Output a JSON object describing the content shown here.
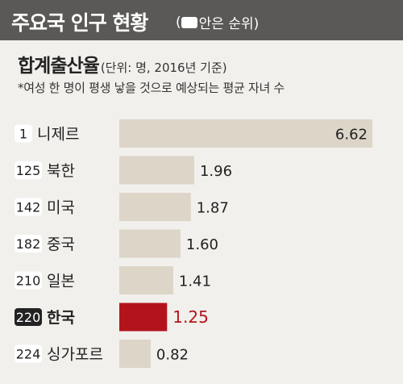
{
  "header": {
    "title": "주요국 인구 현황",
    "note_open": "(",
    "note_text": "안은 순위)"
  },
  "subtitle": "합계출산율",
  "unit": "(단위: 명, 2016년 기준)",
  "description": "*여성 한 명이 평생 낳을 것으로 예상되는 평균 자녀 수",
  "colors": {
    "header_bg": "#5b5957",
    "bar_default": "#dcd5c8",
    "bar_highlight": "#b3141c",
    "value_highlight": "#b3141c",
    "rank_box_highlight": "#222222"
  },
  "chart_data": {
    "type": "bar",
    "orientation": "horizontal",
    "categories": [
      "니제르",
      "북한",
      "미국",
      "중국",
      "일본",
      "한국",
      "싱가포르"
    ],
    "ranks": [
      "1",
      "125",
      "142",
      "182",
      "210",
      "220",
      "224"
    ],
    "values": [
      6.62,
      1.96,
      1.87,
      1.6,
      1.41,
      1.25,
      0.82
    ],
    "value_labels": [
      "6.62",
      "1.96",
      "1.87",
      "1.60",
      "1.41",
      "1.25",
      "0.82"
    ],
    "highlight": "한국",
    "title": "합계출산율",
    "xlabel": "",
    "ylabel": "",
    "xlim": [
      0,
      6.62
    ]
  }
}
